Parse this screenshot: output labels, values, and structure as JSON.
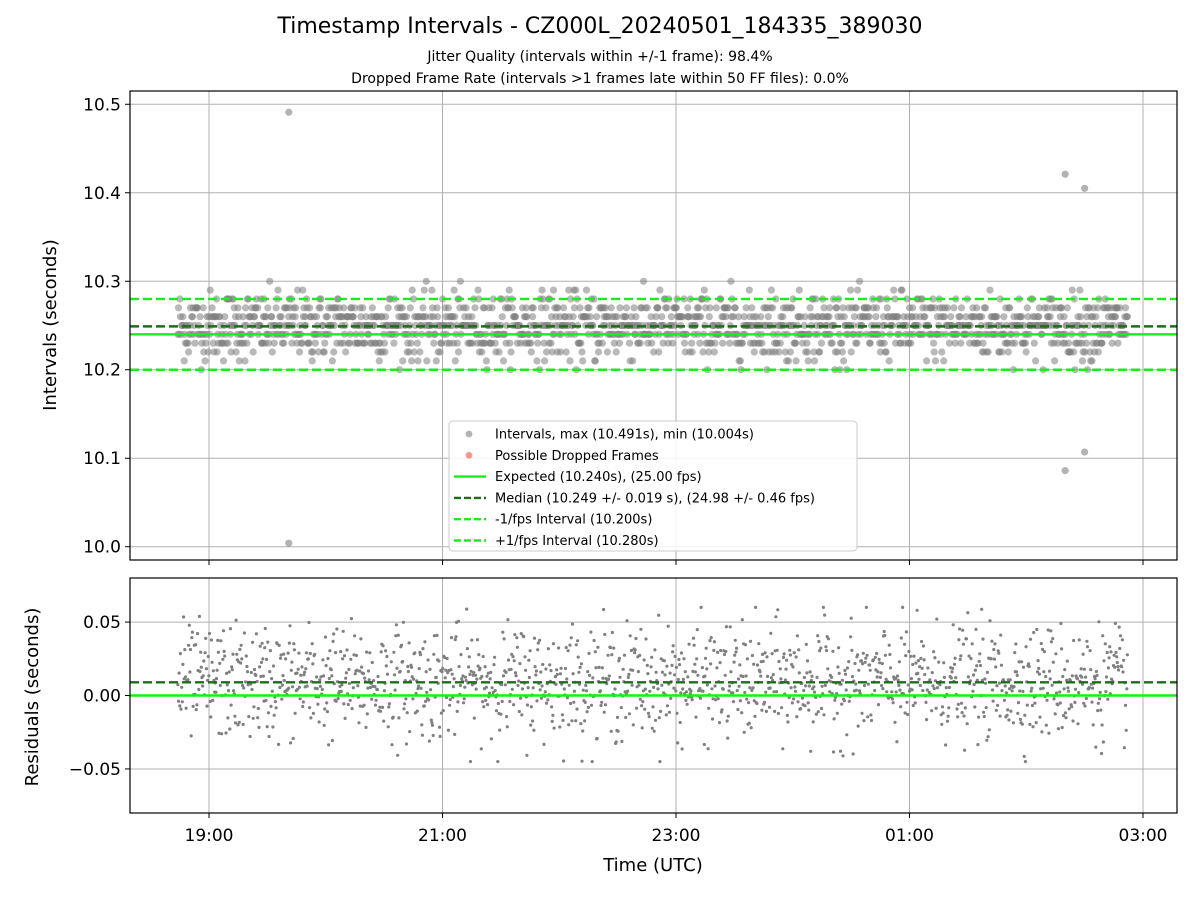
{
  "chart_data": {
    "title": "Timestamp Intervals - CZ000L_20240501_184335_389030",
    "subtitles": [
      "Jitter Quality (intervals within +/-1 frame): 98.4%",
      "Dropped Frame Rate (intervals >1 frames late within 50 FF files): 0.0%"
    ],
    "xlabel": "Time (UTC)",
    "x_ticks": [
      "19:00",
      "21:00",
      "23:00",
      "01:00",
      "03:00"
    ],
    "panels": [
      {
        "type": "scatter",
        "ylabel": "Intervals (seconds)",
        "ylim": [
          9.985,
          10.515
        ],
        "y_ticks": [
          "10.0",
          "10.1",
          "10.2",
          "10.3",
          "10.4",
          "10.5"
        ],
        "grid": true,
        "legend_position": "lower-center",
        "series": [
          {
            "name": "Intervals, max (10.491s), min (10.004s)",
            "kind": "scatter",
            "color": "#808080",
            "distribution": {
              "median": 10.249,
              "spread": 0.019,
              "min_in_band": 10.2,
              "max_in_band": 10.297
            },
            "outliers": [
              {
                "x": "19:41",
                "y": 10.491
              },
              {
                "x": "19:41",
                "y": 10.004
              },
              {
                "x": "02:20",
                "y": 10.421
              },
              {
                "x": "02:20",
                "y": 10.086
              },
              {
                "x": "02:30",
                "y": 10.405
              },
              {
                "x": "02:30",
                "y": 10.107
              }
            ]
          },
          {
            "name": "Possible Dropped Frames",
            "kind": "scatter",
            "color": "#ff4d4d",
            "values": []
          },
          {
            "name": "Expected (10.240s), (25.00 fps)",
            "kind": "hline",
            "value": 10.24,
            "color": "#1aed1a",
            "style": "solid"
          },
          {
            "name": "Median (10.249 +/- 0.019 s), (24.98 +/- 0.46 fps)",
            "kind": "hline",
            "value": 10.249,
            "color": "#1a6e1a",
            "style": "dashed"
          },
          {
            "name": "-1/fps Interval (10.200s)",
            "kind": "hline",
            "value": 10.2,
            "color": "#1aed1a",
            "style": "dashed"
          },
          {
            "name": "+1/fps Interval (10.280s)",
            "kind": "hline",
            "value": 10.28,
            "color": "#1aed1a",
            "style": "dashed"
          }
        ]
      },
      {
        "type": "scatter",
        "ylabel": "Residuals (seconds)",
        "ylim": [
          -0.08,
          0.08
        ],
        "y_ticks": [
          "0.05",
          "0.00",
          "−0.05"
        ],
        "grid": true,
        "series": [
          {
            "kind": "scatter",
            "color": "#808080",
            "distribution": {
              "center": 0.009,
              "spread": 0.019
            }
          },
          {
            "kind": "hline",
            "value": 0.0,
            "color": "#1aed1a",
            "style": "solid"
          },
          {
            "kind": "hline",
            "value": 0.009,
            "color": "#1a6e1a",
            "style": "dashed"
          }
        ]
      }
    ],
    "time_range": [
      "18:44",
      "02:52"
    ]
  }
}
